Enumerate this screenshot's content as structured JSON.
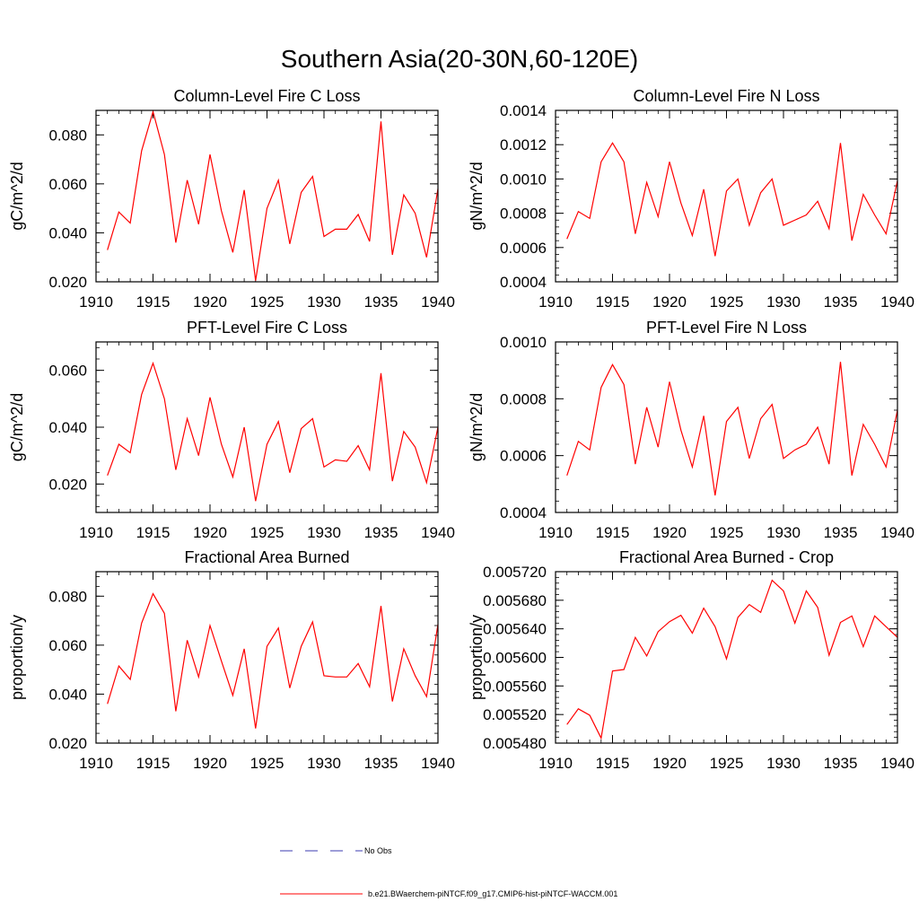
{
  "figure": {
    "title": "Southern Asia(20-30N,60-120E)"
  },
  "legend": {
    "entries": [
      {
        "label": "No Obs",
        "color": "#3b3bb0",
        "style": "dashed"
      },
      {
        "label": "b.e21.BWaerchem-piNTCF.f09_g17.CMIP6-hist-piNTCF-WACCM.001",
        "color": "#ff0000",
        "style": "solid"
      }
    ]
  },
  "chart_data": [
    {
      "type": "line",
      "title": "Column-Level Fire C Loss",
      "xlabel": "",
      "ylabel": "gC/m^2/d",
      "xlim": [
        1910,
        1940
      ],
      "ylim": [
        0.02,
        0.09
      ],
      "xticks": [
        "1910",
        "1915",
        "1920",
        "1925",
        "1930",
        "1935",
        "1940"
      ],
      "yticks": [
        "0.020",
        "0.040",
        "0.060",
        "0.080"
      ],
      "x": [
        1911,
        1912,
        1913,
        1914,
        1915,
        1916,
        1917,
        1918,
        1919,
        1920,
        1921,
        1922,
        1923,
        1924,
        1925,
        1926,
        1927,
        1928,
        1929,
        1930,
        1931,
        1932,
        1933,
        1934,
        1935,
        1936,
        1937,
        1938,
        1939,
        1940
      ],
      "series": [
        {
          "color": "#ff0000",
          "values": [
            0.033,
            0.0485,
            0.044,
            0.0735,
            0.0895,
            0.072,
            0.036,
            0.0615,
            0.0435,
            0.072,
            0.049,
            0.032,
            0.0575,
            0.0205,
            0.05,
            0.0615,
            0.0355,
            0.0565,
            0.063,
            0.0385,
            0.0415,
            0.0415,
            0.0475,
            0.0365,
            0.0855,
            0.031,
            0.0555,
            0.048,
            0.03,
            0.058
          ]
        }
      ]
    },
    {
      "type": "line",
      "title": "Column-Level Fire N Loss",
      "xlabel": "",
      "ylabel": "gN/m^2/d",
      "xlim": [
        1910,
        1940
      ],
      "ylim": [
        0.0004,
        0.0014
      ],
      "xticks": [
        "1910",
        "1915",
        "1920",
        "1925",
        "1930",
        "1935",
        "1940"
      ],
      "yticks": [
        "0.0004",
        "0.0006",
        "0.0008",
        "0.0010",
        "0.0012",
        "0.0014"
      ],
      "x": [
        1911,
        1912,
        1913,
        1914,
        1915,
        1916,
        1917,
        1918,
        1919,
        1920,
        1921,
        1922,
        1923,
        1924,
        1925,
        1926,
        1927,
        1928,
        1929,
        1930,
        1931,
        1932,
        1933,
        1934,
        1935,
        1936,
        1937,
        1938,
        1939,
        1940
      ],
      "series": [
        {
          "color": "#ff0000",
          "values": [
            0.00065,
            0.00081,
            0.00077,
            0.0011,
            0.00121,
            0.0011,
            0.00068,
            0.00098,
            0.00078,
            0.0011,
            0.00086,
            0.00067,
            0.00094,
            0.00055,
            0.00093,
            0.001,
            0.00073,
            0.00092,
            0.001,
            0.00073,
            0.00076,
            0.00079,
            0.00087,
            0.00071,
            0.00121,
            0.00064,
            0.00091,
            0.00079,
            0.00068,
            0.00099
          ]
        }
      ]
    },
    {
      "type": "line",
      "title": "PFT-Level Fire C Loss",
      "xlabel": "",
      "ylabel": "gC/m^2/d",
      "xlim": [
        1910,
        1940
      ],
      "ylim": [
        0.01,
        0.07
      ],
      "xticks": [
        "1910",
        "1915",
        "1920",
        "1925",
        "1930",
        "1935",
        "1940"
      ],
      "yticks": [
        "0.020",
        "0.040",
        "0.060"
      ],
      "x": [
        1911,
        1912,
        1913,
        1914,
        1915,
        1916,
        1917,
        1918,
        1919,
        1920,
        1921,
        1922,
        1923,
        1924,
        1925,
        1926,
        1927,
        1928,
        1929,
        1930,
        1931,
        1932,
        1933,
        1934,
        1935,
        1936,
        1937,
        1938,
        1939,
        1940
      ],
      "series": [
        {
          "color": "#ff0000",
          "values": [
            0.023,
            0.034,
            0.031,
            0.0515,
            0.0625,
            0.05,
            0.025,
            0.043,
            0.03,
            0.0505,
            0.034,
            0.0225,
            0.04,
            0.014,
            0.034,
            0.042,
            0.024,
            0.0395,
            0.043,
            0.026,
            0.0285,
            0.028,
            0.0335,
            0.025,
            0.059,
            0.021,
            0.0385,
            0.033,
            0.0205,
            0.04
          ]
        }
      ]
    },
    {
      "type": "line",
      "title": "PFT-Level Fire N Loss",
      "xlabel": "",
      "ylabel": "gN/m^2/d",
      "xlim": [
        1910,
        1940
      ],
      "ylim": [
        0.0004,
        0.001
      ],
      "xticks": [
        "1910",
        "1915",
        "1920",
        "1925",
        "1930",
        "1935",
        "1940"
      ],
      "yticks": [
        "0.0004",
        "0.0006",
        "0.0008",
        "0.0010"
      ],
      "x": [
        1911,
        1912,
        1913,
        1914,
        1915,
        1916,
        1917,
        1918,
        1919,
        1920,
        1921,
        1922,
        1923,
        1924,
        1925,
        1926,
        1927,
        1928,
        1929,
        1930,
        1931,
        1932,
        1933,
        1934,
        1935,
        1936,
        1937,
        1938,
        1939,
        1940
      ],
      "series": [
        {
          "color": "#ff0000",
          "values": [
            0.00053,
            0.00065,
            0.00062,
            0.00084,
            0.00092,
            0.00085,
            0.00057,
            0.00077,
            0.00063,
            0.00086,
            0.00069,
            0.00056,
            0.00074,
            0.00046,
            0.00072,
            0.00077,
            0.00059,
            0.00073,
            0.00078,
            0.00059,
            0.00062,
            0.00064,
            0.0007,
            0.00057,
            0.00093,
            0.00053,
            0.00071,
            0.00064,
            0.00056,
            0.00076
          ]
        }
      ]
    },
    {
      "type": "line",
      "title": "Fractional Area Burned",
      "xlabel": "",
      "ylabel": "proportion/y",
      "xlim": [
        1910,
        1940
      ],
      "ylim": [
        0.02,
        0.09
      ],
      "xticks": [
        "1910",
        "1915",
        "1920",
        "1925",
        "1930",
        "1935",
        "1940"
      ],
      "yticks": [
        "0.020",
        "0.040",
        "0.060",
        "0.080"
      ],
      "x": [
        1911,
        1912,
        1913,
        1914,
        1915,
        1916,
        1917,
        1918,
        1919,
        1920,
        1921,
        1922,
        1923,
        1924,
        1925,
        1926,
        1927,
        1928,
        1929,
        1930,
        1931,
        1932,
        1933,
        1934,
        1935,
        1936,
        1937,
        1938,
        1939,
        1940
      ],
      "series": [
        {
          "color": "#ff0000",
          "values": [
            0.036,
            0.0515,
            0.046,
            0.069,
            0.081,
            0.073,
            0.033,
            0.062,
            0.047,
            0.068,
            0.0535,
            0.0395,
            0.0585,
            0.026,
            0.0595,
            0.067,
            0.0425,
            0.0595,
            0.0695,
            0.0475,
            0.047,
            0.047,
            0.0525,
            0.043,
            0.076,
            0.037,
            0.0585,
            0.0475,
            0.039,
            0.0685
          ]
        }
      ]
    },
    {
      "type": "line",
      "title": "Fractional Area Burned - Crop",
      "xlabel": "",
      "ylabel": "proportion/y",
      "xlim": [
        1910,
        1940
      ],
      "ylim": [
        0.00548,
        0.00572
      ],
      "xticks": [
        "1910",
        "1915",
        "1920",
        "1925",
        "1930",
        "1935",
        "1940"
      ],
      "yticks": [
        "0.005480",
        "0.005520",
        "0.005560",
        "0.005600",
        "0.005640",
        "0.005680",
        "0.005720"
      ],
      "x": [
        1911,
        1912,
        1913,
        1914,
        1915,
        1916,
        1917,
        1918,
        1919,
        1920,
        1921,
        1922,
        1923,
        1924,
        1925,
        1926,
        1927,
        1928,
        1929,
        1930,
        1931,
        1932,
        1933,
        1934,
        1935,
        1936,
        1937,
        1938,
        1939,
        1940
      ],
      "series": [
        {
          "color": "#ff0000",
          "values": [
            0.005506,
            0.005528,
            0.005519,
            0.005487,
            0.005581,
            0.005583,
            0.005628,
            0.005602,
            0.005636,
            0.00565,
            0.005659,
            0.005634,
            0.005669,
            0.005643,
            0.005598,
            0.005656,
            0.005674,
            0.005663,
            0.005708,
            0.005693,
            0.005648,
            0.005693,
            0.00567,
            0.005603,
            0.005649,
            0.005658,
            0.005615,
            0.005658,
            0.005643,
            0.005628
          ]
        }
      ]
    }
  ]
}
